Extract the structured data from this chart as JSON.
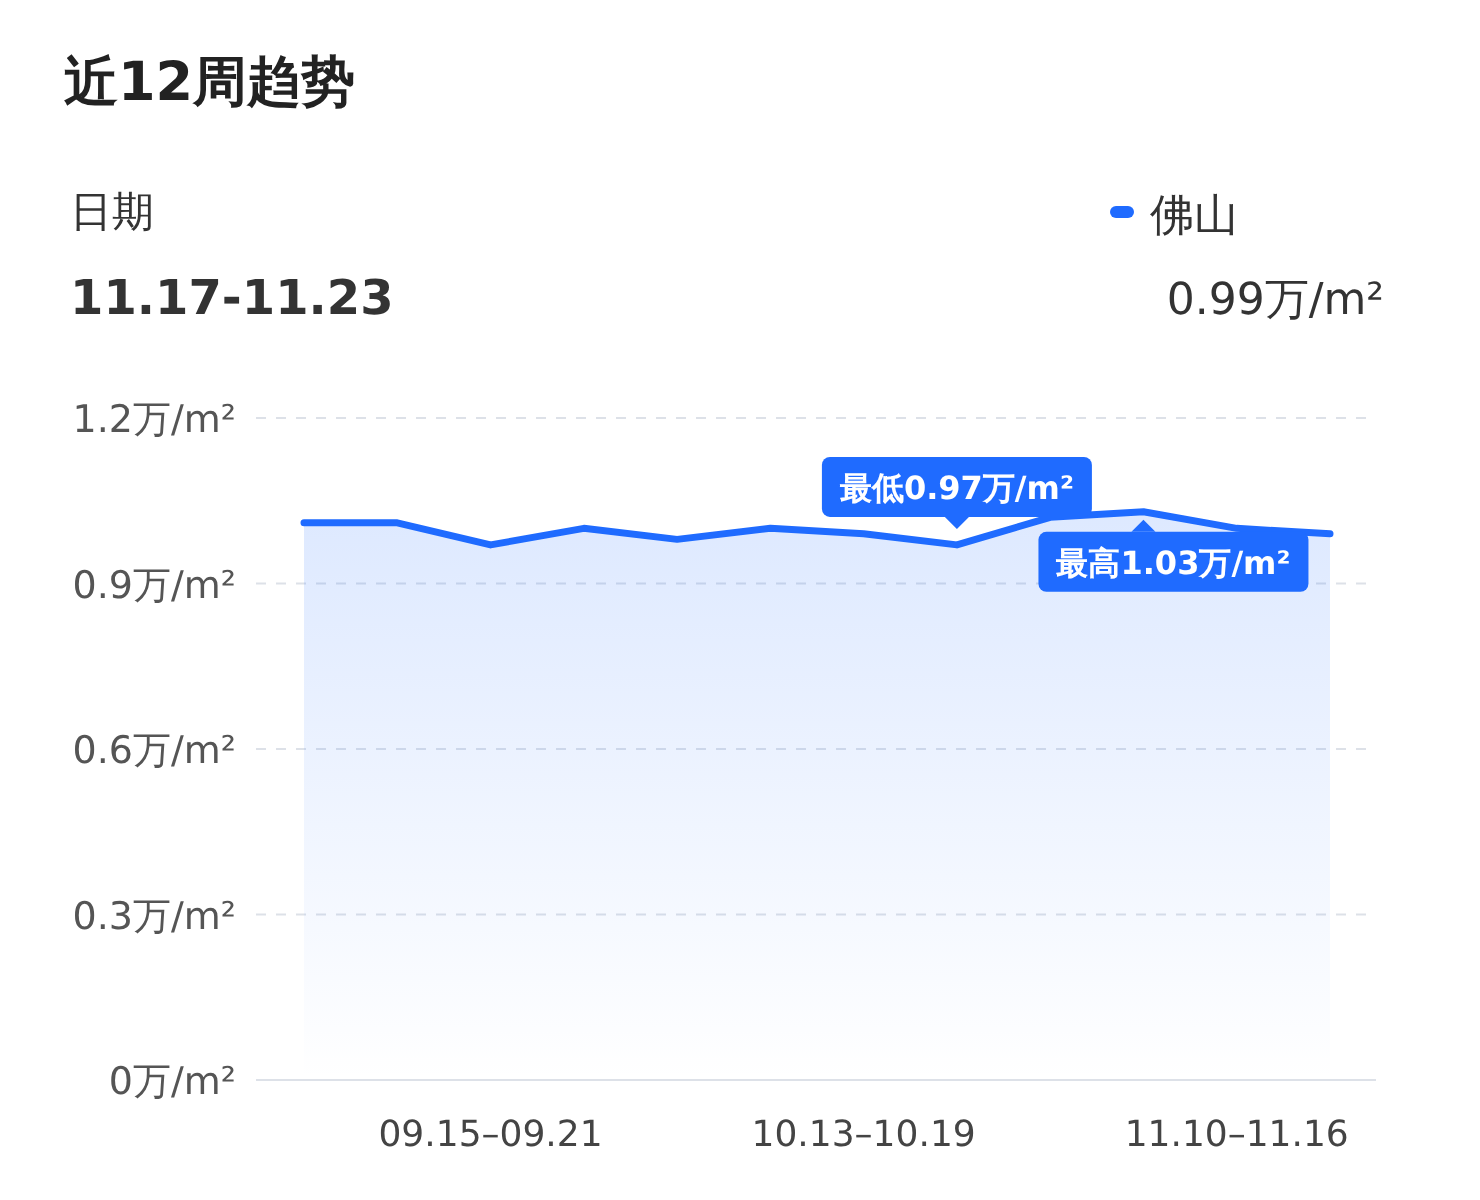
{
  "chart_data": {
    "type": "area",
    "title": "近12周趋势",
    "categories": [
      null,
      null,
      "09.15–09.21",
      null,
      null,
      null,
      "10.13–10.19",
      null,
      null,
      null,
      "11.10–11.16",
      null
    ],
    "series": [
      {
        "name": "佛山",
        "color": "#1f6bff",
        "values": [
          1.01,
          1.01,
          0.97,
          1.0,
          0.98,
          1.0,
          0.99,
          0.97,
          1.02,
          1.03,
          1.0,
          0.99
        ]
      }
    ],
    "ylim": [
      0,
      1.2
    ],
    "yticks": [
      {
        "value": 0,
        "label": "0万/m²"
      },
      {
        "value": 0.3,
        "label": "0.3万/m²"
      },
      {
        "value": 0.6,
        "label": "0.6万/m²"
      },
      {
        "value": 0.9,
        "label": "0.9万/m²"
      },
      {
        "value": 1.2,
        "label": "1.2万/m²"
      }
    ],
    "grid": "y",
    "legend": "top right",
    "annotations": [
      "日期",
      "11.17-11.23",
      "0.99万/m²",
      {
        "text": "最低0.97万/m²",
        "y": 0.97
      },
      {
        "text": "最高1.03万/m²",
        "y": 1.03
      }
    ]
  }
}
